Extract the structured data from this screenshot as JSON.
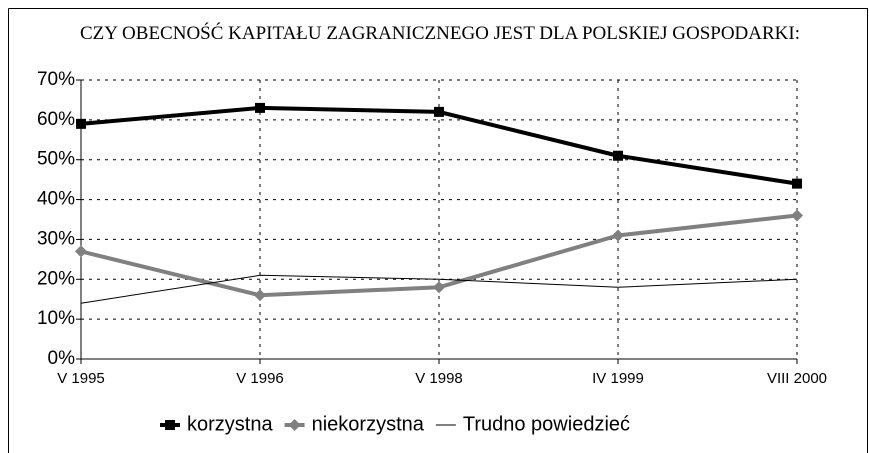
{
  "chart_data": {
    "type": "line",
    "title": "CZY OBECNOŚĆ KAPITAŁU ZAGRANICZNEGO JEST DLA POLSKIEJ GOSPODARKI:",
    "categories": [
      "V 1995",
      "V 1996",
      "V 1998",
      "IV 1999",
      "VIII 2000"
    ],
    "series": [
      {
        "name": "korzystna",
        "color": "#000000",
        "marker": "square",
        "line_width": 4,
        "values": [
          59,
          63,
          62,
          51,
          44
        ]
      },
      {
        "name": "niekorzystna",
        "color": "#808080",
        "marker": "diamond",
        "line_width": 4,
        "values": [
          27,
          16,
          18,
          31,
          36
        ]
      },
      {
        "name": "Trudno powiedzieć",
        "color": "#000000",
        "marker": "none",
        "line_width": 1,
        "values": [
          14,
          21,
          20,
          18,
          20
        ]
      }
    ],
    "ylim": [
      0,
      70
    ],
    "yticks": [
      {
        "value": 0,
        "label": "0%"
      },
      {
        "value": 10,
        "label": "10%"
      },
      {
        "value": 20,
        "label": "20%"
      },
      {
        "value": 30,
        "label": "30%"
      },
      {
        "value": 40,
        "label": "40%"
      },
      {
        "value": 50,
        "label": "50%"
      },
      {
        "value": 60,
        "label": "60%"
      },
      {
        "value": 70,
        "label": "70%"
      }
    ],
    "grid": true,
    "legend": "bottom"
  }
}
